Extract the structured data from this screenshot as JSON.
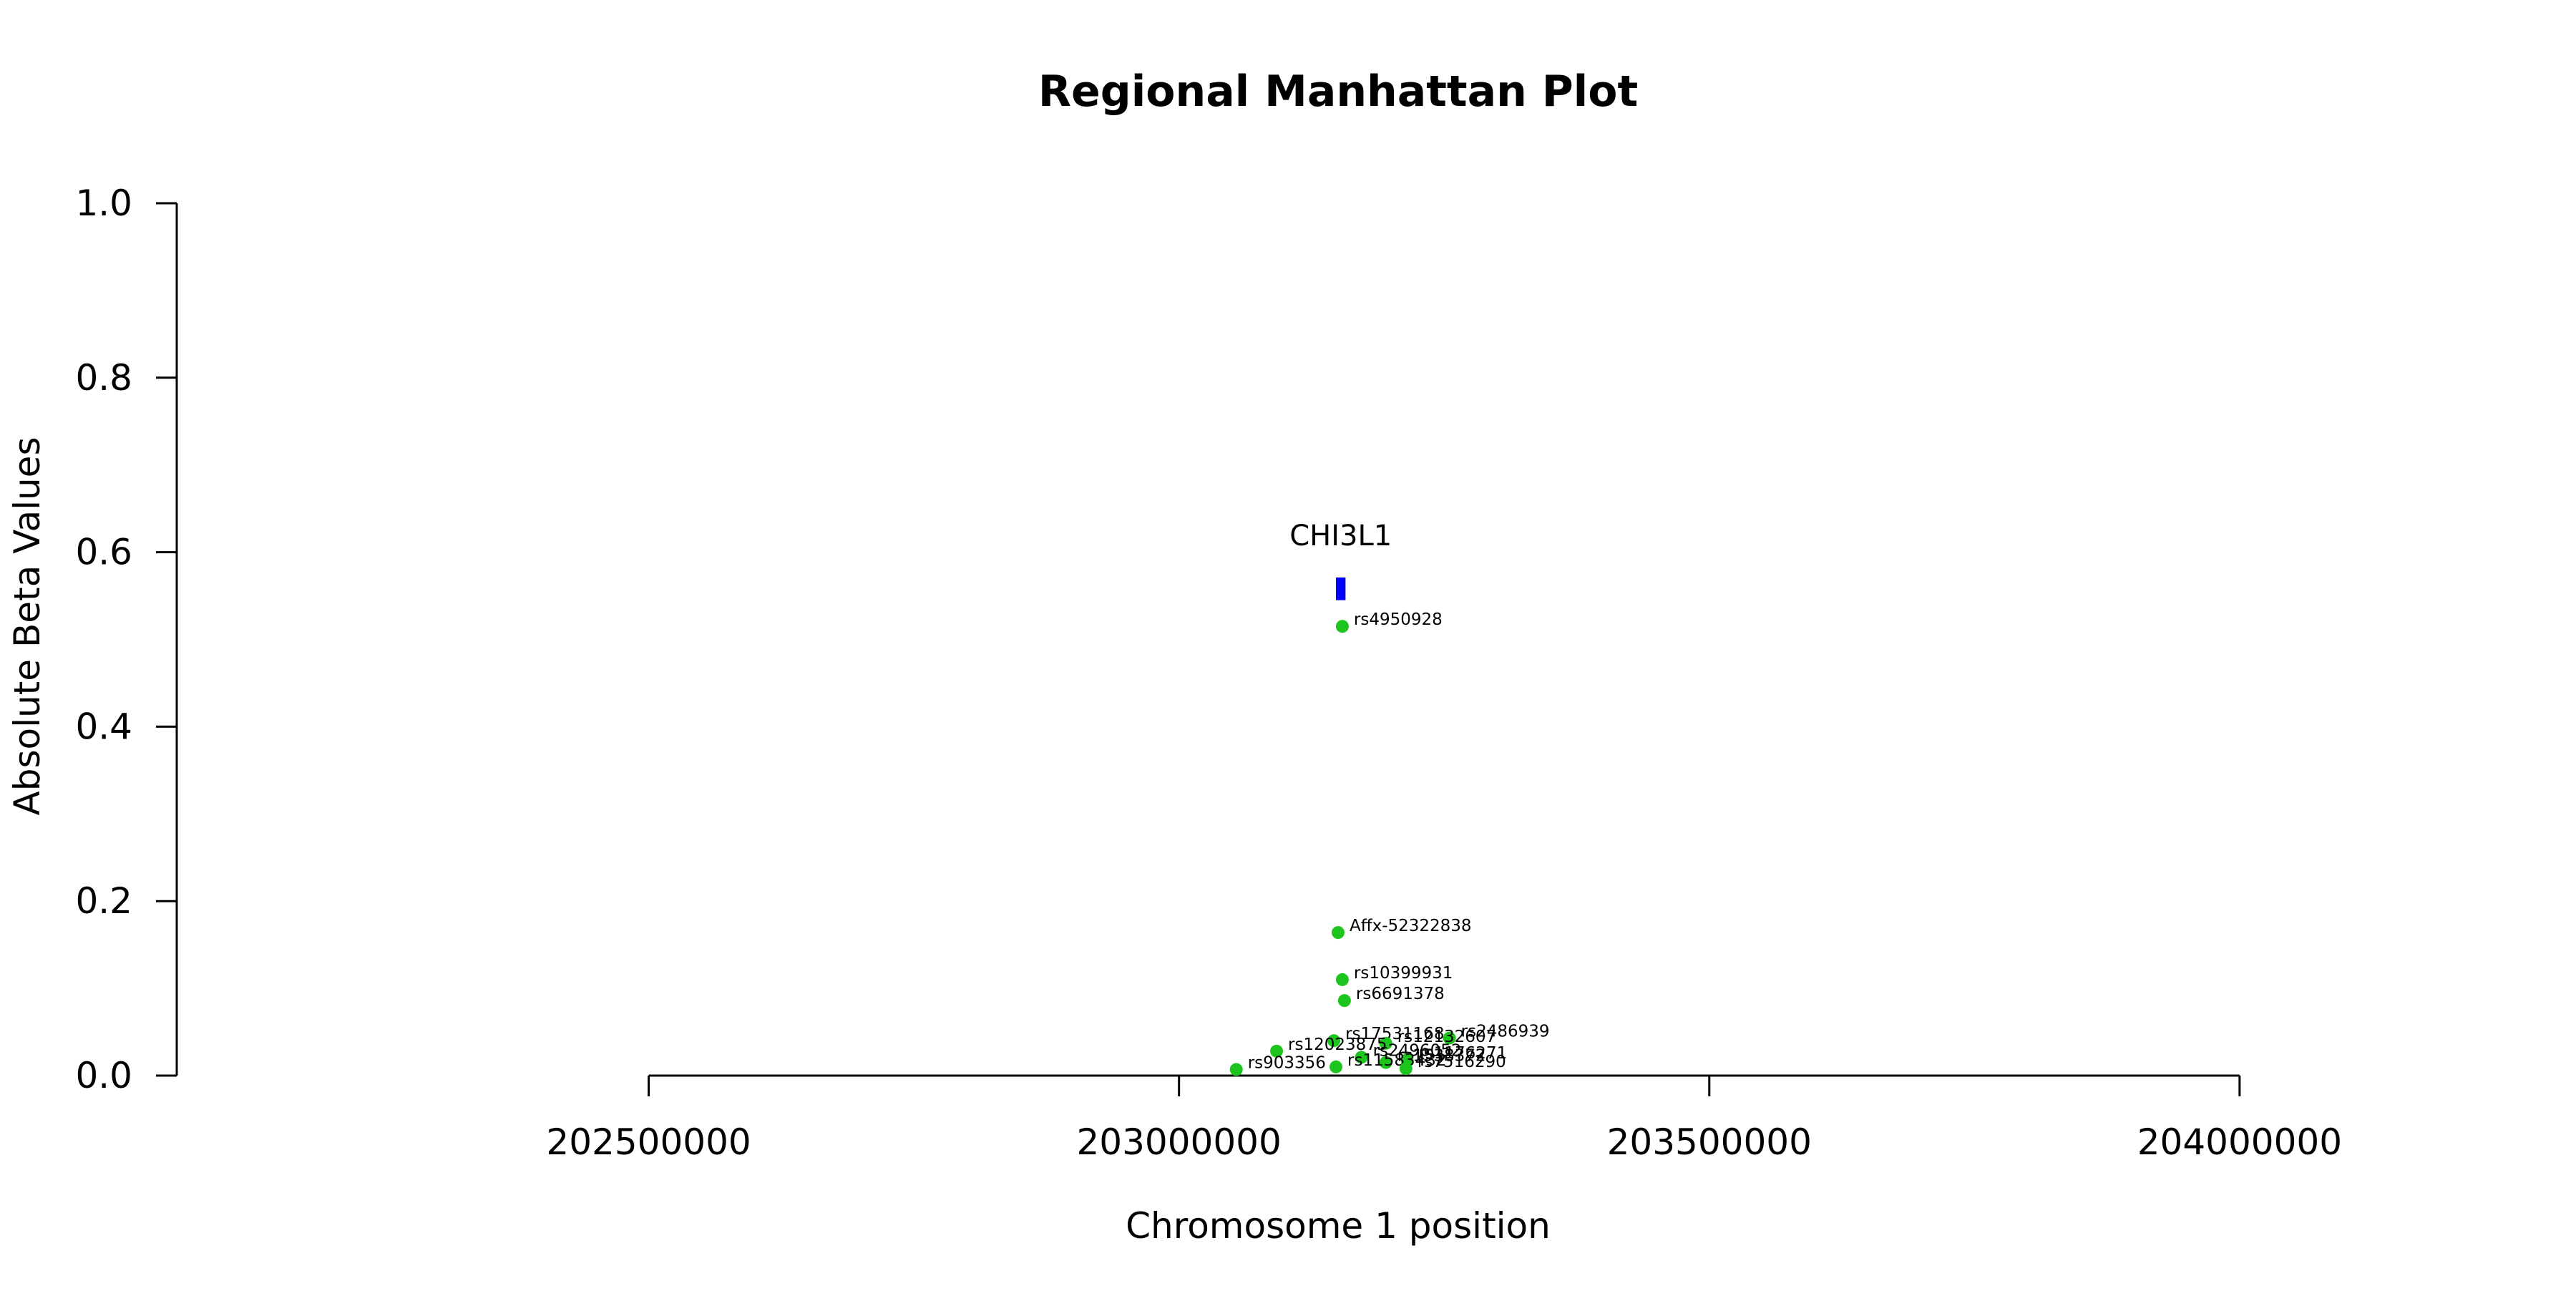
{
  "chart_data": {
    "type": "scatter",
    "title": "Regional Manhattan Plot",
    "xlabel": "Chromosome 1 position",
    "ylabel": "Absolute Beta Values",
    "xlim": [
      202055000,
      204245000
    ],
    "ylim": [
      0,
      1.0
    ],
    "x_ticks": [
      202500000,
      203000000,
      203500000,
      204000000
    ],
    "x_tick_labels": [
      "202500000",
      "203000000",
      "203500000",
      "204000000"
    ],
    "y_ticks": [
      0.0,
      0.2,
      0.4,
      0.6,
      0.8,
      1.0
    ],
    "y_tick_labels": [
      "0.0",
      "0.2",
      "0.4",
      "0.6",
      "0.8",
      "1.0"
    ],
    "grid": false,
    "point_color": "#1ec41e",
    "gene_color": "#0000ff",
    "gene": {
      "name": "CHI3L1",
      "start": 203148000,
      "end": 203157000,
      "y_low": 0.545,
      "y_high": 0.571
    },
    "series": [
      {
        "points": [
          {
            "x": 203154000,
            "y": 0.515,
            "label": "rs4950928"
          },
          {
            "x": 203150000,
            "y": 0.164,
            "label": "Affx-52322838"
          },
          {
            "x": 203154000,
            "y": 0.11,
            "label": "rs10399931"
          },
          {
            "x": 203156000,
            "y": 0.086,
            "label": "rs6691378"
          },
          {
            "x": 203146000,
            "y": 0.04,
            "label": "rs17531168"
          },
          {
            "x": 203255000,
            "y": 0.043,
            "label": "rs2486939"
          },
          {
            "x": 203195000,
            "y": 0.037,
            "label": "rs12132607"
          },
          {
            "x": 203092000,
            "y": 0.028,
            "label": "rs12023875"
          },
          {
            "x": 203172000,
            "y": 0.021,
            "label": "rs2496052"
          },
          {
            "x": 203195000,
            "y": 0.015,
            "label": "rs1538372"
          },
          {
            "x": 203215000,
            "y": 0.018,
            "label": "rs1176271"
          },
          {
            "x": 203148000,
            "y": 0.01,
            "label": "rs11583432"
          },
          {
            "x": 203214000,
            "y": 0.008,
            "label": "rs7516290"
          },
          {
            "x": 203054000,
            "y": 0.007,
            "label": "rs903356"
          }
        ]
      }
    ]
  }
}
